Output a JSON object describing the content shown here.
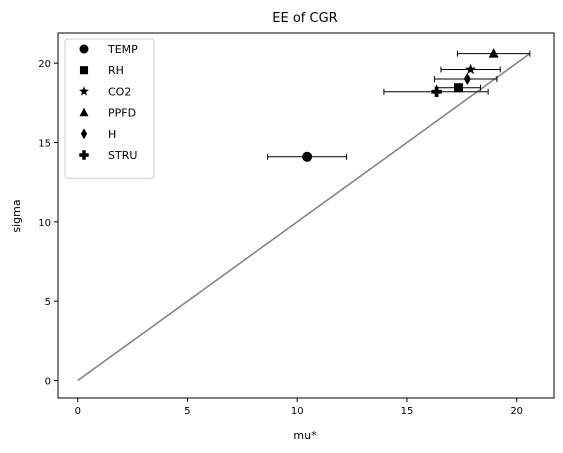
{
  "chart_data": {
    "type": "scatter",
    "title": "EE of CGR",
    "xlabel": "mu*",
    "ylabel": "sigma",
    "xlim": [
      -0.9,
      21.7
    ],
    "ylim": [
      -1.1,
      21.9
    ],
    "xticks": [
      0,
      5,
      10,
      15,
      20
    ],
    "yticks": [
      0,
      5,
      10,
      15,
      20
    ],
    "grid": false,
    "legend_position": "top-left",
    "reference_line": {
      "x": [
        0,
        20.6
      ],
      "y": [
        0,
        20.6
      ],
      "color": "#808080"
    },
    "series": [
      {
        "name": "TEMP",
        "marker": "circle",
        "x": 10.45,
        "y": 14.1,
        "xerr_low": 8.65,
        "xerr_high": 12.25
      },
      {
        "name": "RH",
        "marker": "square",
        "x": 17.35,
        "y": 18.45,
        "xerr_low": 16.35,
        "xerr_high": 18.35
      },
      {
        "name": "CO2",
        "marker": "star",
        "x": 17.9,
        "y": 19.6,
        "xerr_low": 16.55,
        "xerr_high": 19.25
      },
      {
        "name": "PPFD",
        "marker": "triangle",
        "x": 18.95,
        "y": 20.6,
        "xerr_low": 17.3,
        "xerr_high": 20.6
      },
      {
        "name": "H",
        "marker": "diamond",
        "x": 17.75,
        "y": 19.0,
        "xerr_low": 16.25,
        "xerr_high": 19.1
      },
      {
        "name": "STRU",
        "marker": "plus",
        "x": 16.35,
        "y": 18.2,
        "xerr_low": 13.95,
        "xerr_high": 18.7
      }
    ],
    "colors": {
      "markers": "#000000",
      "reference_line": "#808080"
    }
  }
}
